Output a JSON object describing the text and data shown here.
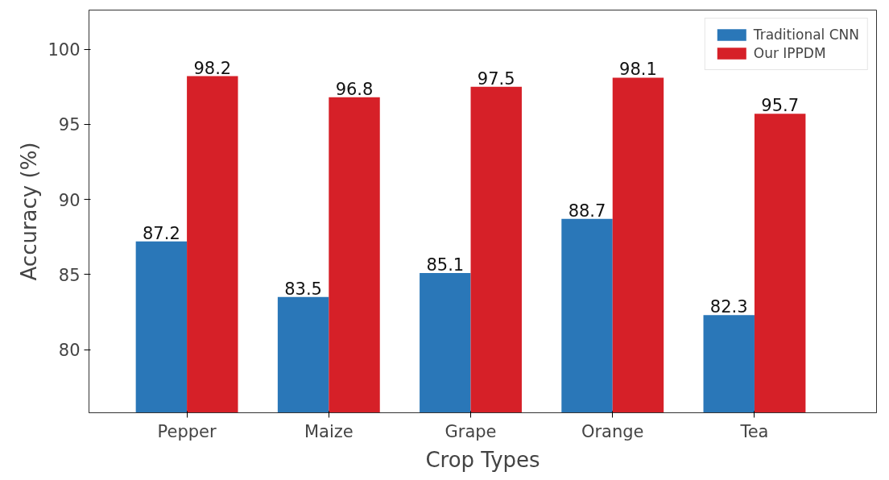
{
  "chart_data": {
    "type": "bar",
    "xlabel": "Crop Types",
    "ylabel": "Accuracy (%)",
    "categories": [
      "Pepper",
      "Maize",
      "Grape",
      "Orange",
      "Tea"
    ],
    "series": [
      {
        "name": "Traditional CNN",
        "color": "#2a77b8",
        "values": [
          87.2,
          83.5,
          85.1,
          88.7,
          82.3
        ]
      },
      {
        "name": "Our IPPDM",
        "color": "#d62028",
        "values": [
          98.2,
          96.8,
          97.5,
          98.1,
          95.7
        ]
      }
    ],
    "ylim": [
      75.8,
      102.6
    ],
    "yticks": [
      80,
      85,
      90,
      95,
      100
    ],
    "grid": false,
    "legend": "top right",
    "data_labels": true
  }
}
